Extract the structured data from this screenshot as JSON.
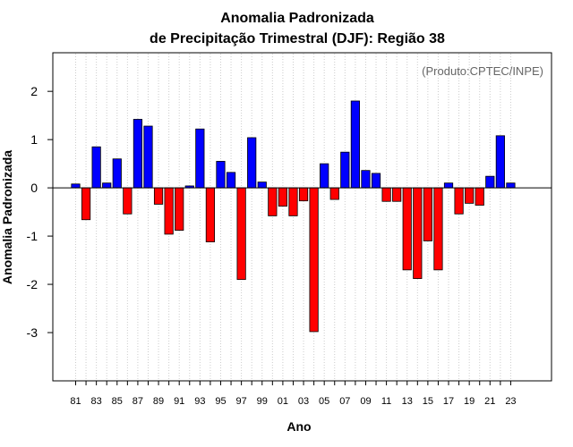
{
  "chart_data": {
    "type": "bar",
    "title": [
      "Anomalia Padronizada",
      "de Precipitação Trimestral (DJF): Região 38"
    ],
    "annotation": "(Produto:CPTEC/INPE)",
    "xlabel": "Ano",
    "ylabel": "Anomalia Padronizada",
    "ylim": [
      -4,
      2.8
    ],
    "yticks": [
      -3,
      -2,
      -1,
      0,
      1,
      2
    ],
    "grid": "vertical dotted",
    "colors": {
      "positive": "#0000ff",
      "negative": "#ff0000",
      "zero_line": "#000000",
      "grid": "#cccccc"
    },
    "categories": [
      "81",
      "82",
      "83",
      "84",
      "85",
      "86",
      "87",
      "88",
      "89",
      "90",
      "91",
      "92",
      "93",
      "94",
      "95",
      "96",
      "97",
      "98",
      "99",
      "00",
      "01",
      "02",
      "03",
      "04",
      "05",
      "06",
      "07",
      "08",
      "09",
      "10",
      "11",
      "12",
      "13",
      "14",
      "15",
      "16",
      "17",
      "18",
      "19",
      "20",
      "21",
      "22",
      "23"
    ],
    "xtick_labels": [
      "81",
      "83",
      "85",
      "87",
      "89",
      "91",
      "93",
      "95",
      "97",
      "99",
      "01",
      "03",
      "05",
      "07",
      "09",
      "11",
      "13",
      "15",
      "17",
      "19",
      "21",
      "23"
    ],
    "values": [
      0.08,
      -0.66,
      0.85,
      0.1,
      0.6,
      -0.54,
      1.42,
      1.28,
      -0.34,
      -0.96,
      -0.88,
      0.04,
      1.22,
      -1.12,
      0.55,
      0.32,
      -1.9,
      1.04,
      0.12,
      -0.58,
      -0.38,
      -0.58,
      -0.27,
      -2.98,
      0.5,
      -0.24,
      0.74,
      1.8,
      0.36,
      0.3,
      -0.28,
      -0.28,
      -1.7,
      -1.88,
      -1.1,
      -1.7,
      0.1,
      -0.54,
      -0.32,
      -0.36,
      0.24,
      1.08,
      0.1
    ]
  }
}
